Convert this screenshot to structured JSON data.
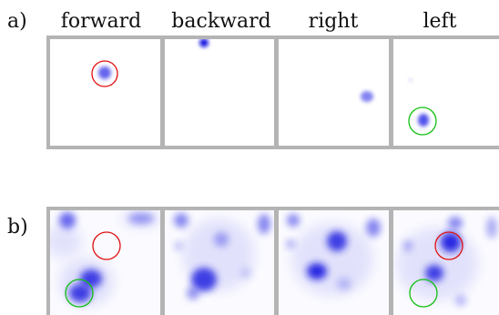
{
  "figure": {
    "row_labels": [
      "a)",
      "b)"
    ],
    "column_labels": [
      "forward",
      "backward",
      "right",
      "left"
    ],
    "colors": {
      "frame": "#b4b4b4",
      "blob": "#1414e6",
      "red_circle": "#e01010",
      "green_circle": "#10c010"
    }
  }
}
